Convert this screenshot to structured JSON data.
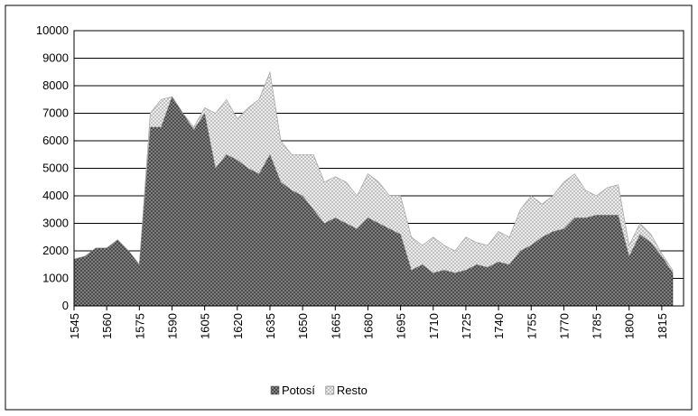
{
  "chart_data": {
    "type": "stacked_area",
    "x": [
      1545,
      1550,
      1555,
      1560,
      1565,
      1570,
      1575,
      1580,
      1585,
      1590,
      1595,
      1600,
      1605,
      1610,
      1615,
      1620,
      1625,
      1630,
      1635,
      1640,
      1645,
      1650,
      1655,
      1660,
      1665,
      1670,
      1675,
      1680,
      1685,
      1690,
      1695,
      1700,
      1705,
      1710,
      1715,
      1720,
      1725,
      1730,
      1735,
      1740,
      1745,
      1750,
      1755,
      1760,
      1765,
      1770,
      1775,
      1780,
      1785,
      1790,
      1795,
      1800,
      1805,
      1810,
      1815,
      1820
    ],
    "series": [
      {
        "name": "Potosí",
        "color": "#333333",
        "values": [
          1700,
          1800,
          2100,
          2100,
          2400,
          2000,
          1500,
          6500,
          6500,
          7600,
          7000,
          6400,
          7000,
          5000,
          5500,
          5300,
          5000,
          4800,
          5500,
          4500,
          4200,
          4000,
          3500,
          3000,
          3200,
          3000,
          2800,
          3200,
          3000,
          2800,
          2600,
          1300,
          1500,
          1200,
          1300,
          1200,
          1300,
          1500,
          1400,
          1600,
          1500,
          2000,
          2200,
          2500,
          2700,
          2800,
          3200,
          3200,
          3300,
          3300,
          3300,
          1800,
          2600,
          2300,
          1800,
          1200
        ]
      },
      {
        "name": "Resto",
        "color": "#bbbbbb",
        "values": [
          0,
          0,
          0,
          0,
          0,
          0,
          0,
          500,
          1000,
          0,
          0,
          100,
          200,
          2000,
          2000,
          1500,
          2200,
          2700,
          3000,
          1500,
          1300,
          1500,
          2000,
          1500,
          1500,
          1500,
          1200,
          1600,
          1500,
          1200,
          1400,
          1200,
          700,
          1300,
          900,
          800,
          1200,
          800,
          800,
          1100,
          1000,
          1500,
          1800,
          1200,
          1300,
          1700,
          1600,
          1000,
          700,
          1000,
          1100,
          400,
          400,
          300,
          100,
          100
        ]
      }
    ],
    "xlim": [
      1545,
      1825
    ],
    "xticks": [
      1545,
      1560,
      1575,
      1590,
      1605,
      1620,
      1635,
      1650,
      1665,
      1680,
      1695,
      1710,
      1725,
      1740,
      1755,
      1770,
      1785,
      1800,
      1815
    ],
    "ylim": [
      0,
      10000
    ],
    "yticks": [
      0,
      1000,
      2000,
      3000,
      4000,
      5000,
      6000,
      7000,
      8000,
      9000,
      10000
    ],
    "grid": true,
    "legend": "bottom"
  }
}
